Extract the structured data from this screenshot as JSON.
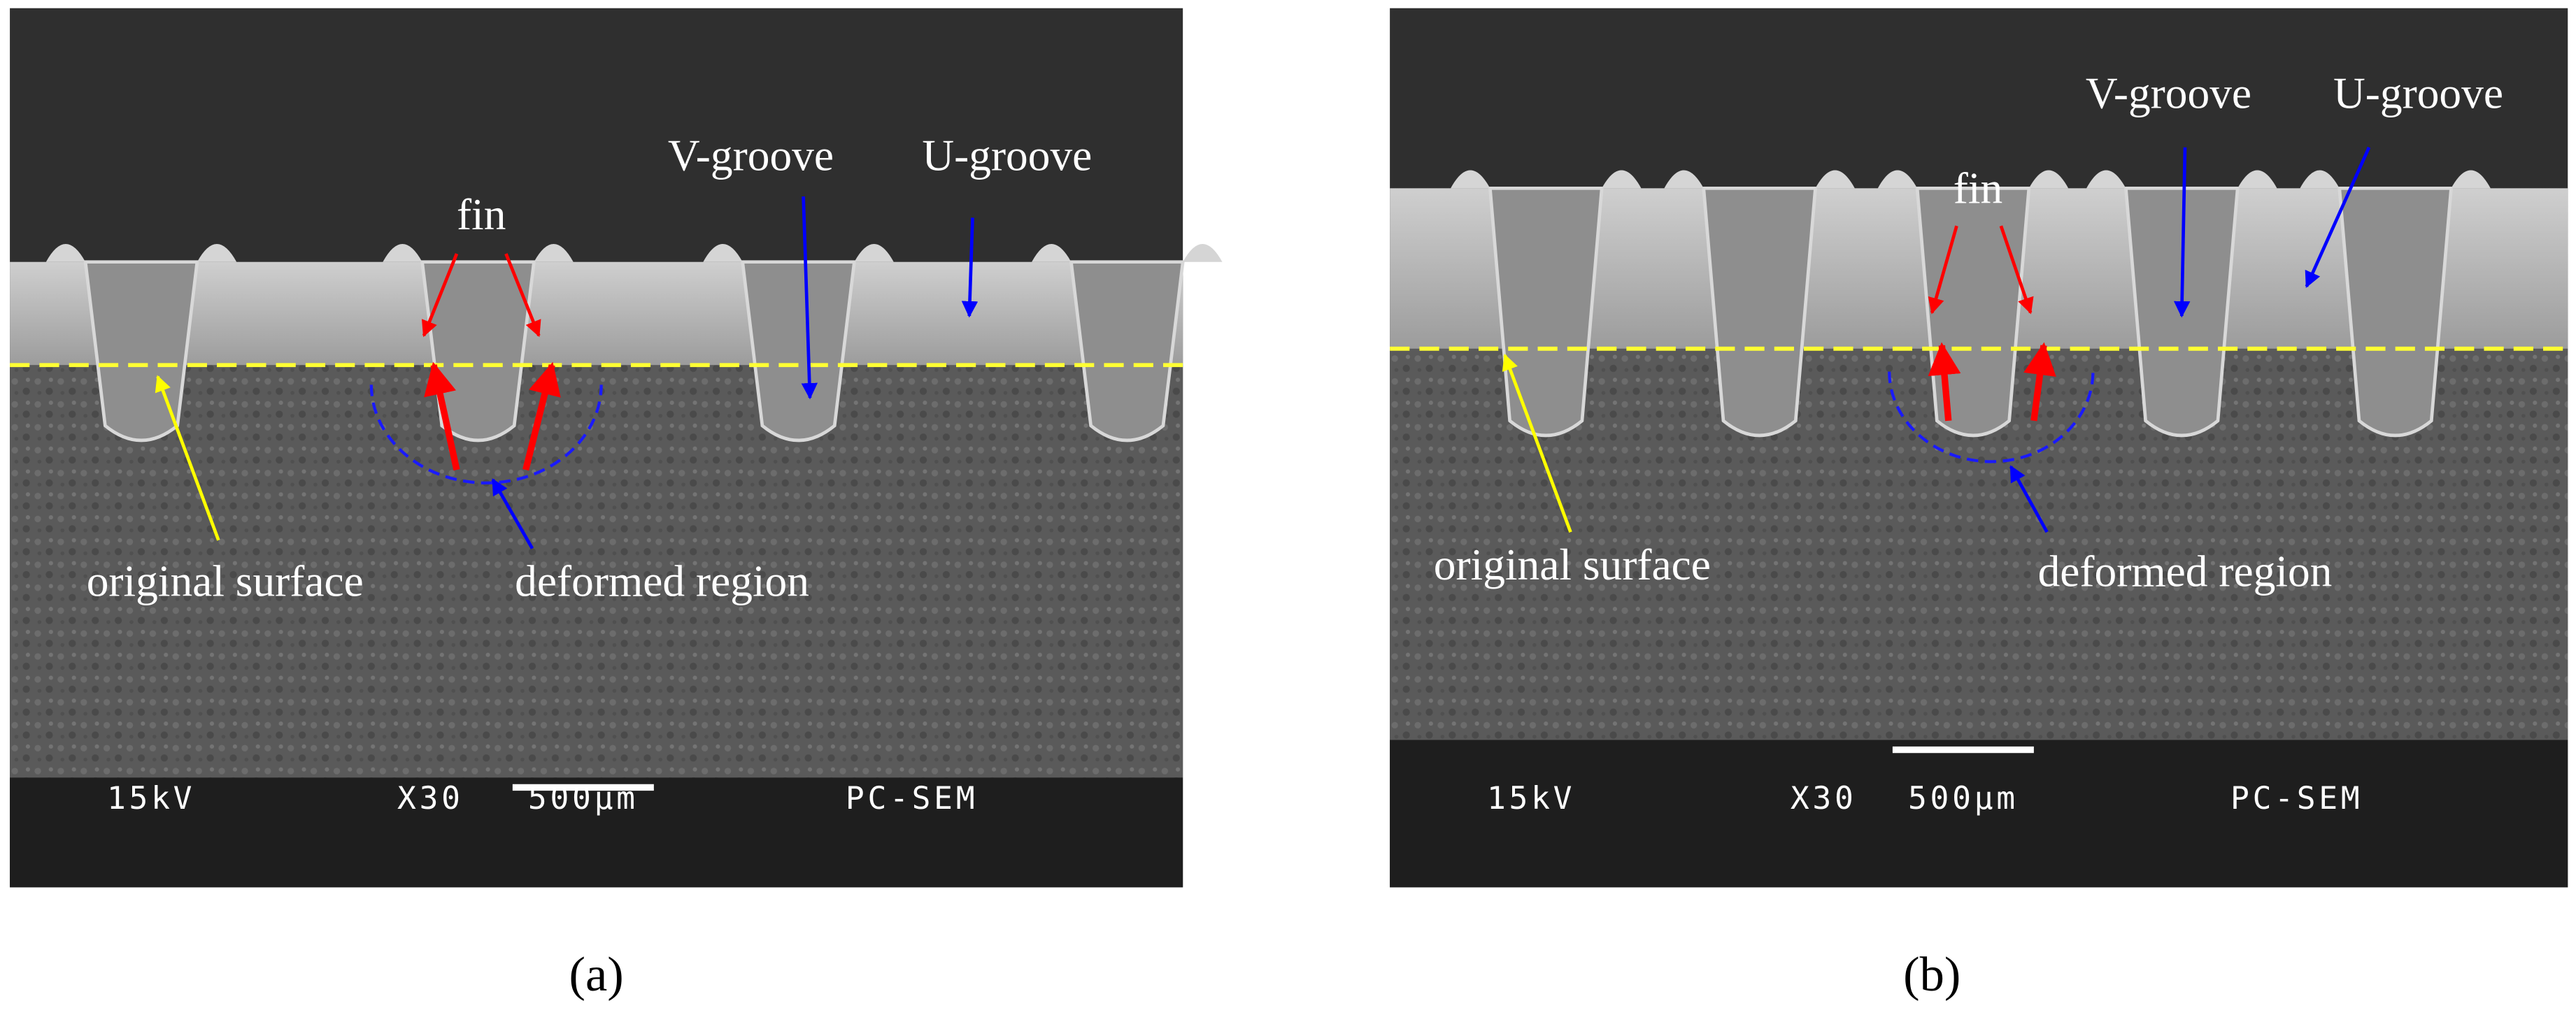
{
  "panels": [
    {
      "label": "(a)",
      "annotations": {
        "fin": "fin",
        "v_groove": "V-groove",
        "u_groove": "U-groove",
        "original_surface": "original surface",
        "deformed_region": "deformed region"
      },
      "scale_bar": {
        "voltage": "15kV",
        "magnification": "X30",
        "scale": "500µm",
        "mode": "PC-SEM"
      }
    },
    {
      "label": "(b)",
      "annotations": {
        "fin": "fin",
        "v_groove": "V-groove",
        "u_groove": "U-groove",
        "original_surface": "original surface",
        "deformed_region": "deformed region"
      },
      "scale_bar": {
        "voltage": "15kV",
        "magnification": "X30",
        "scale": "500µm",
        "mode": "PC-SEM"
      }
    }
  ]
}
